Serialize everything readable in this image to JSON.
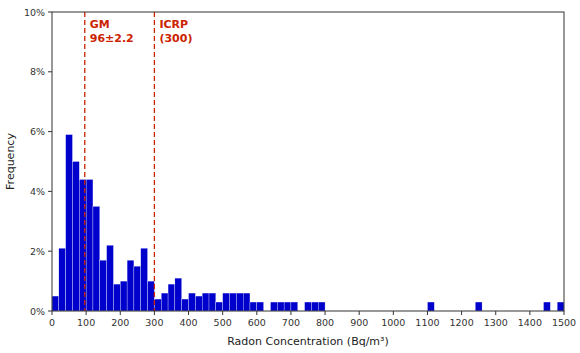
{
  "chart_data": {
    "type": "histogram",
    "xlabel": "Radon Concentration (Bq/m³)",
    "ylabel": "Frequency",
    "xlim": [
      0,
      1500
    ],
    "ylim": [
      0,
      0.1
    ],
    "xticks": [
      0,
      100,
      200,
      300,
      400,
      500,
      600,
      700,
      800,
      900,
      1000,
      1100,
      1200,
      1300,
      1400,
      1500
    ],
    "yticks": [
      {
        "value": 0,
        "label": "0%"
      },
      {
        "value": 0.02,
        "label": "2%"
      },
      {
        "value": 0.04,
        "label": "4%"
      },
      {
        "value": 0.06,
        "label": "6%"
      },
      {
        "value": 0.08,
        "label": "8%"
      },
      {
        "value": 0.1,
        "label": "10%"
      }
    ],
    "grid": false,
    "color": "#0000CD",
    "bins": [
      0,
      20,
      40,
      60,
      80,
      100,
      120,
      140,
      160,
      180,
      200,
      220,
      240,
      260,
      280,
      300,
      320,
      340,
      360,
      380,
      400,
      420,
      440,
      460,
      480,
      500,
      520,
      540,
      560,
      580,
      600,
      620,
      640,
      660,
      680,
      700,
      720,
      740,
      760,
      780,
      800,
      820,
      840,
      860,
      880,
      900,
      920,
      940,
      960,
      980,
      1000,
      1020,
      1040,
      1060,
      1080,
      1100,
      1120,
      1140,
      1160,
      1180,
      1200,
      1220,
      1240,
      1260,
      1280,
      1300,
      1320,
      1340,
      1360,
      1380,
      1400,
      1420,
      1440,
      1460,
      1480,
      1500
    ],
    "values": [
      0.005,
      0.021,
      0.059,
      0.05,
      0.044,
      0.044,
      0.035,
      0.017,
      0.022,
      0.009,
      0.01,
      0.017,
      0.015,
      0.021,
      0.01,
      0.004,
      0.006,
      0.009,
      0.011,
      0.004,
      0.006,
      0.005,
      0.006,
      0.006,
      0.003,
      0.006,
      0.006,
      0.006,
      0.006,
      0.003,
      0.003,
      0.0,
      0.003,
      0.003,
      0.003,
      0.003,
      0.0,
      0.003,
      0.003,
      0.003,
      0.0,
      0.0,
      0.0,
      0.0,
      0.0,
      0.0,
      0.0,
      0.0,
      0.0,
      0.0,
      0.0,
      0.0,
      0.0,
      0.0,
      0.0,
      0.003,
      0.0,
      0.0,
      0.0,
      0.0,
      0.0,
      0.0,
      0.003,
      0.0,
      0.0,
      0.0,
      0.0,
      0.0,
      0.0,
      0.0,
      0.0,
      0.0,
      0.003,
      0.0,
      0.003
    ],
    "annotations": [
      {
        "x": 96,
        "text": [
          "GM",
          "96±2.2"
        ],
        "color": "#CC2200",
        "line_style": "dashed"
      },
      {
        "x": 300,
        "text": [
          "ICRP",
          "(300)"
        ],
        "color": "#CC2200",
        "line_style": "dashed"
      }
    ]
  }
}
